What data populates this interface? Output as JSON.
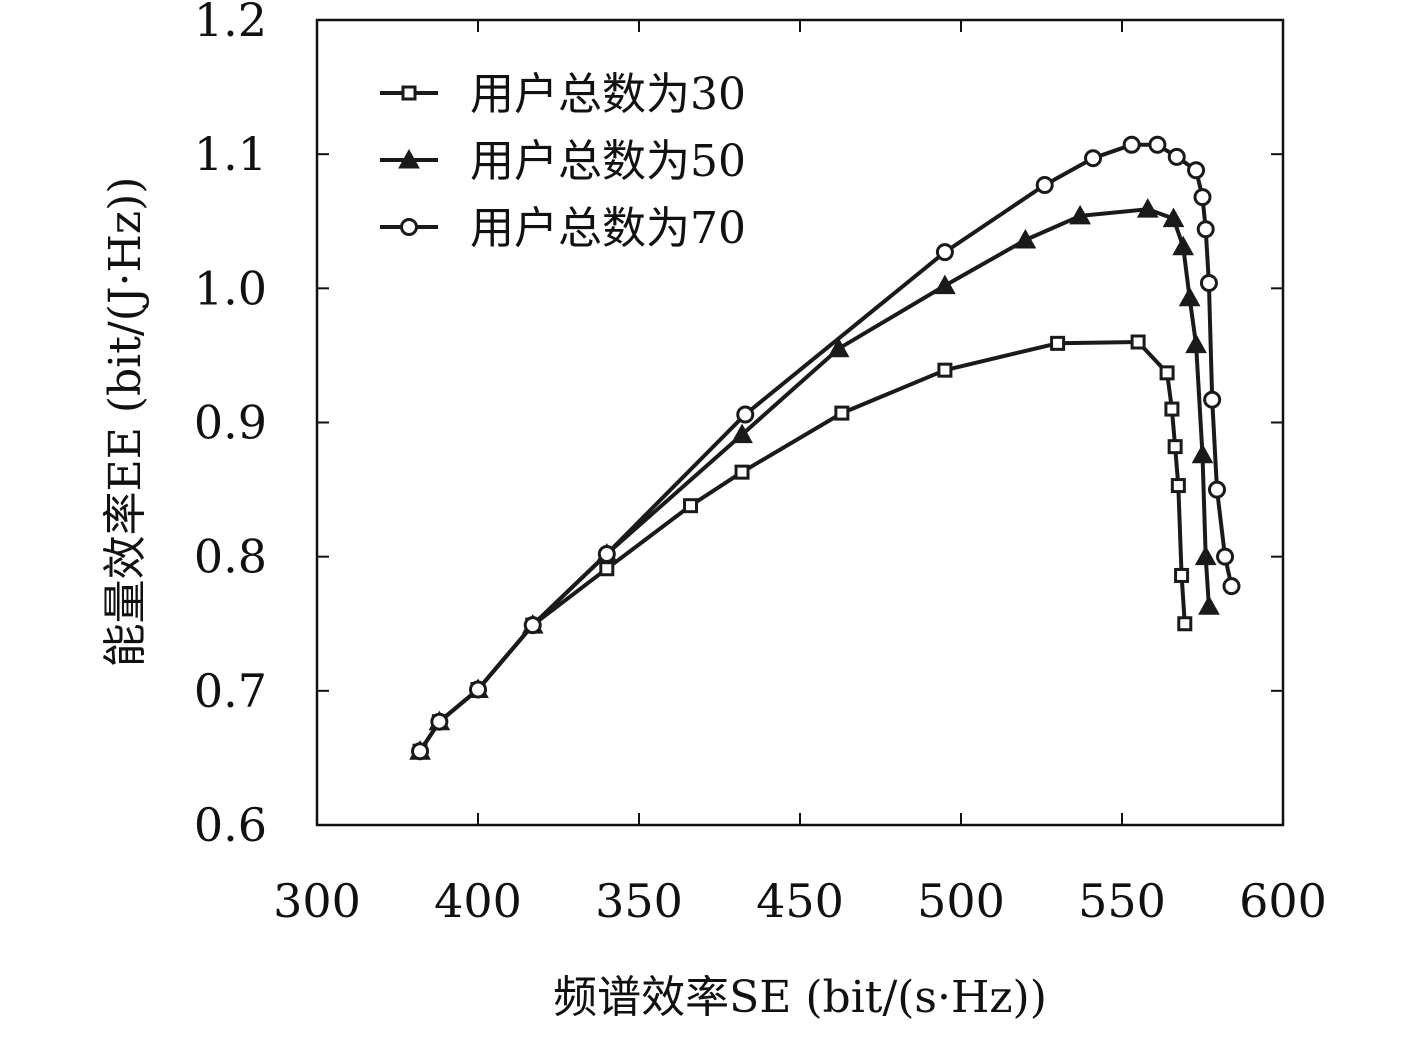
{
  "chart_data": {
    "type": "line",
    "title": "",
    "xlabel": "频谱效率SE (bit/(s·Hz))",
    "ylabel": "能量效率EE (bit/(J·Hz))",
    "x_ticks": [
      "300",
      "400",
      "350",
      "450",
      "500",
      "550",
      "600"
    ],
    "y_ticks": [
      "0.6",
      "0.7",
      "0.8",
      "0.9",
      "1.0",
      "1.1",
      "1.2"
    ],
    "xlim": [
      300,
      600
    ],
    "ylim": [
      0.6,
      1.2
    ],
    "grid": false,
    "legend_position": "top-left",
    "series": [
      {
        "name": "用户总数为30",
        "marker": "square",
        "color": "#1a1a1a",
        "x": [
          332,
          338,
          350,
          367,
          390,
          416,
          432,
          463,
          495,
          530,
          555,
          564,
          565.5,
          566.5,
          567.5,
          568.5,
          569.5
        ],
        "y": [
          0.655,
          0.677,
          0.701,
          0.749,
          0.791,
          0.838,
          0.863,
          0.907,
          0.939,
          0.959,
          0.96,
          0.937,
          0.91,
          0.882,
          0.853,
          0.786,
          0.75
        ]
      },
      {
        "name": "用户总数为50",
        "marker": "triangle",
        "color": "#1a1a1a",
        "x": [
          332,
          338,
          350,
          367,
          390,
          432,
          462,
          495,
          520,
          537,
          558,
          566,
          569,
          571,
          573,
          575,
          576,
          577
        ],
        "y": [
          0.655,
          0.677,
          0.701,
          0.749,
          0.802,
          0.891,
          0.955,
          1.002,
          1.036,
          1.054,
          1.059,
          1.052,
          1.031,
          0.993,
          0.958,
          0.876,
          0.8,
          0.763
        ]
      },
      {
        "name": "用户总数为70",
        "marker": "circle",
        "color": "#1a1a1a",
        "x": [
          332,
          338,
          350,
          367,
          390,
          433,
          495,
          526,
          541,
          553,
          561,
          567,
          573,
          575,
          576,
          577,
          578,
          579.5,
          582,
          584
        ],
        "y": [
          0.655,
          0.677,
          0.701,
          0.749,
          0.802,
          0.906,
          1.027,
          1.077,
          1.097,
          1.107,
          1.107,
          1.098,
          1.088,
          1.068,
          1.044,
          1.004,
          0.917,
          0.85,
          0.8,
          0.778
        ]
      }
    ]
  }
}
